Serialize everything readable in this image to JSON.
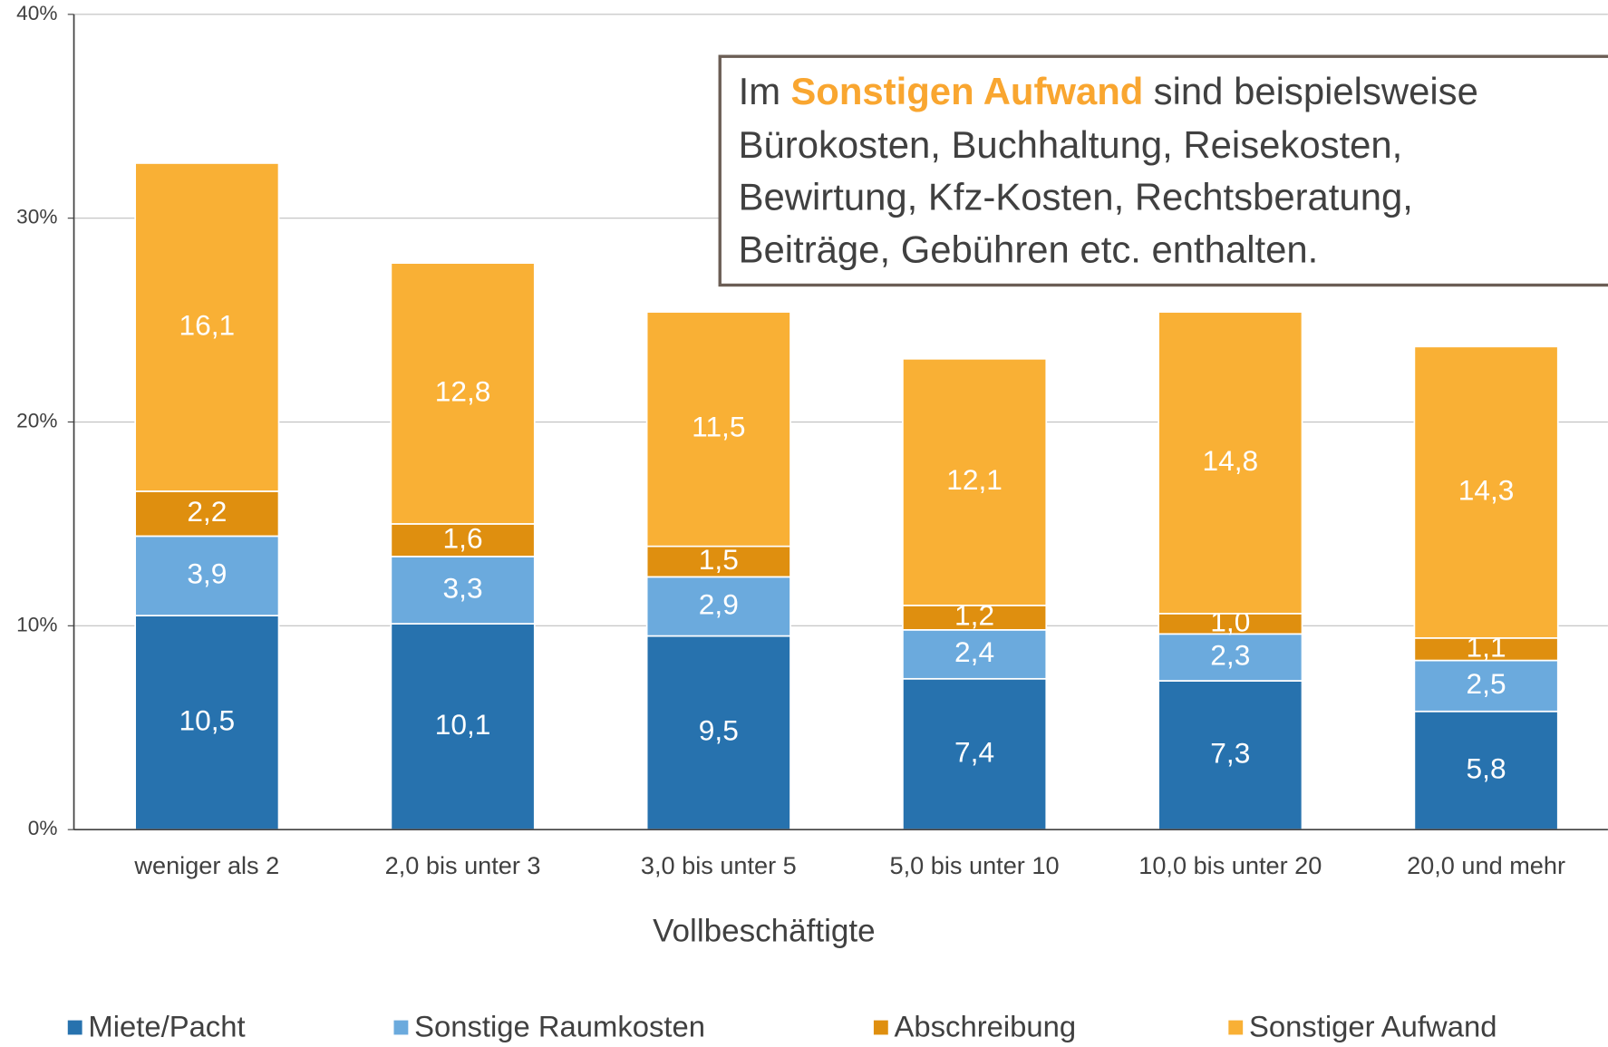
{
  "chart_data": {
    "type": "stacked_bar",
    "x_label": "Vollbeschäftigte",
    "categories": [
      "weniger als 2",
      "2,0 bis unter 3",
      "3,0 bis unter 5",
      "5,0 bis unter 10",
      "10,0 bis unter 20",
      "20,0 und mehr"
    ],
    "series": [
      {
        "name": "Miete/Pacht",
        "color": "#2772ae",
        "values": [
          10.5,
          10.1,
          9.5,
          7.4,
          7.3,
          5.8
        ],
        "value_labels": [
          "10,5",
          "10,1",
          "9,5",
          "7,4",
          "7,3",
          "5,8"
        ]
      },
      {
        "name": "Sonstige Raumkosten",
        "color": "#6baadd",
        "values": [
          3.9,
          3.3,
          2.9,
          2.4,
          2.3,
          2.5
        ],
        "value_labels": [
          "3,9",
          "3,3",
          "2,9",
          "2,4",
          "2,3",
          "2,5"
        ]
      },
      {
        "name": "Abschreibung",
        "color": "#df8f0f",
        "values": [
          2.2,
          1.6,
          1.5,
          1.2,
          1.0,
          1.1
        ],
        "value_labels": [
          "2,2",
          "1,6",
          "1,5",
          "1,2",
          "1,0",
          "1,1"
        ]
      },
      {
        "name": "Sonstiger Aufwand",
        "color": "#f9b035",
        "values": [
          16.1,
          12.8,
          11.5,
          12.1,
          14.8,
          14.3
        ],
        "value_labels": [
          "16,1",
          "12,8",
          "11,5",
          "12,1",
          "14,8",
          "14,3"
        ]
      }
    ],
    "ylim": [
      0,
      40
    ],
    "yticks": [
      {
        "value": 0,
        "label": "0%"
      },
      {
        "value": 10,
        "label": "10%"
      },
      {
        "value": 20,
        "label": "20%"
      },
      {
        "value": 30,
        "label": "30%"
      },
      {
        "value": 40,
        "label": "40%"
      }
    ],
    "grid": true,
    "legend": "bottom",
    "annotation": {
      "start": "Im",
      "highlight": "Sonstigen Aufwand",
      "rest": "sind beispielsweise",
      "lines": [
        "Bürokosten, Buchhaltung, Reisekosten,",
        "Bewirtung, Kfz-Kosten, Rechtsberatung,",
        "Beiträge, Gebühren etc. enthalten."
      ]
    }
  }
}
